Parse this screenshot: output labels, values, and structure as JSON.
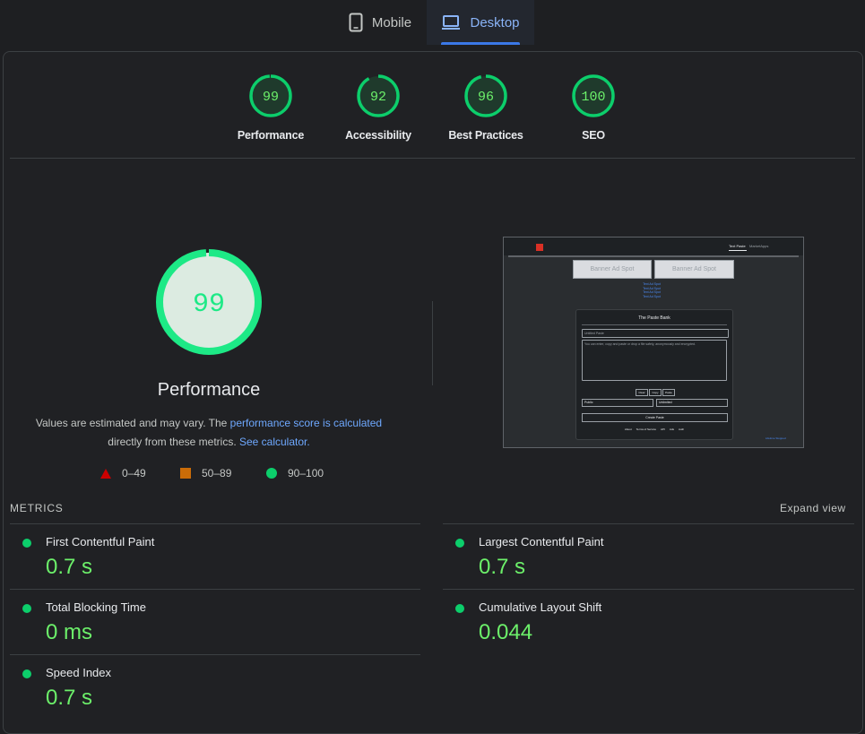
{
  "tabs": [
    {
      "label": "Mobile",
      "icon": "phone-icon",
      "selected": false
    },
    {
      "label": "Desktop",
      "icon": "laptop-icon",
      "selected": true
    }
  ],
  "categories": [
    {
      "score": "99",
      "score_value": 99,
      "label": "Performance"
    },
    {
      "score": "92",
      "score_value": 92,
      "label": "Accessibility"
    },
    {
      "score": "96",
      "score_value": 96,
      "label": "Best Practices"
    },
    {
      "score": "100",
      "score_value": 100,
      "label": "SEO"
    }
  ],
  "performance": {
    "score": "99",
    "score_value": 99,
    "title": "Performance",
    "desc_part1": "Values are estimated and may vary. The ",
    "desc_link1": "performance score is calculated",
    "desc_part2": "directly from these metrics. ",
    "desc_link2": "See calculator."
  },
  "legend": [
    {
      "range": "0–49",
      "color": "#cc0000",
      "shape": "triangle"
    },
    {
      "range": "50–89",
      "color": "#ca6c08",
      "shape": "square"
    },
    {
      "range": "90–100",
      "color": "#0cce6b",
      "shape": "circle"
    }
  ],
  "screenshot": {
    "nav_link1": "Text Paste",
    "nav_link2": "MarketApps",
    "banner1": "Banner Ad Spot",
    "banner2": "Banner Ad Spot",
    "text_ads": [
      "Text Ad Spot",
      "Text Ad Spot",
      "Text Ad Spot",
      "Text Ad Spot"
    ],
    "card_title": "The Paste Bank",
    "title_placeholder": "Untitled Paste",
    "body_placeholder": "You can enter, copy and paste or drop a file safely, anonymously and encrypted.",
    "buttons": [
      "Clear",
      "Copy",
      "Paste"
    ],
    "select1": "Public",
    "select2": "Unlimited",
    "create_button": "Create Paste",
    "footer_links": [
      "About",
      "Terms of Service",
      "API",
      "Ads",
      "Auth"
    ],
    "badge": "Lifetime Stopped"
  },
  "metrics_header": "METRICS",
  "expand_label": "Expand view",
  "metrics": [
    {
      "name": "First Contentful Paint",
      "value": "0.7 s"
    },
    {
      "name": "Largest Contentful Paint",
      "value": "0.7 s"
    },
    {
      "name": "Total Blocking Time",
      "value": "0 ms"
    },
    {
      "name": "Cumulative Layout Shift",
      "value": "0.044"
    },
    {
      "name": "Speed Index",
      "value": "0.7 s"
    }
  ],
  "colors": {
    "pass": "#0cce6b",
    "pass_text": "#6cf06a",
    "gauge_bg": "#1f3a2c",
    "link": "#6ea8fe"
  }
}
